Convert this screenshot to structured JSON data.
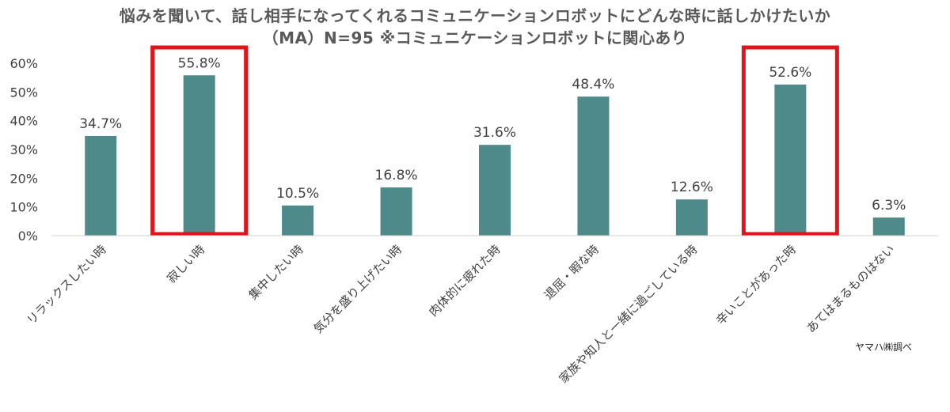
{
  "chart_data": {
    "type": "bar",
    "title": "悩みを聞いて、話し相手になってくれるコミュニケーションロボットにどんな時に話しかけたいか",
    "subtitle": "（MA）N=95 ※コミュニケーションロボットに関心あり",
    "categories": [
      "リラックスしたい時",
      "寂しい時",
      "集中したい時",
      "気分を盛り上げたい時",
      "肉体的に疲れた時",
      "退屈・暇な時",
      "家族や知人と一緒に過ごしている時",
      "辛いことがあった時",
      "あてはまるものはない"
    ],
    "values": [
      34.7,
      55.8,
      10.5,
      16.8,
      31.6,
      48.4,
      12.6,
      52.6,
      6.3
    ],
    "value_labels": [
      "34.7%",
      "55.8%",
      "10.5%",
      "16.8%",
      "31.6%",
      "48.4%",
      "12.6%",
      "52.6%",
      "6.3%"
    ],
    "y_ticks": [
      "0%",
      "10%",
      "20%",
      "30%",
      "40%",
      "50%",
      "60%"
    ],
    "ylim": [
      0,
      60
    ],
    "highlighted": [
      "寂しい時",
      "辛いことがあった時"
    ],
    "grid": false,
    "legend": false,
    "bar_color": "#4e8a8a",
    "highlight_color": "#e0141b",
    "source": "ヤマハ㈱調べ"
  }
}
